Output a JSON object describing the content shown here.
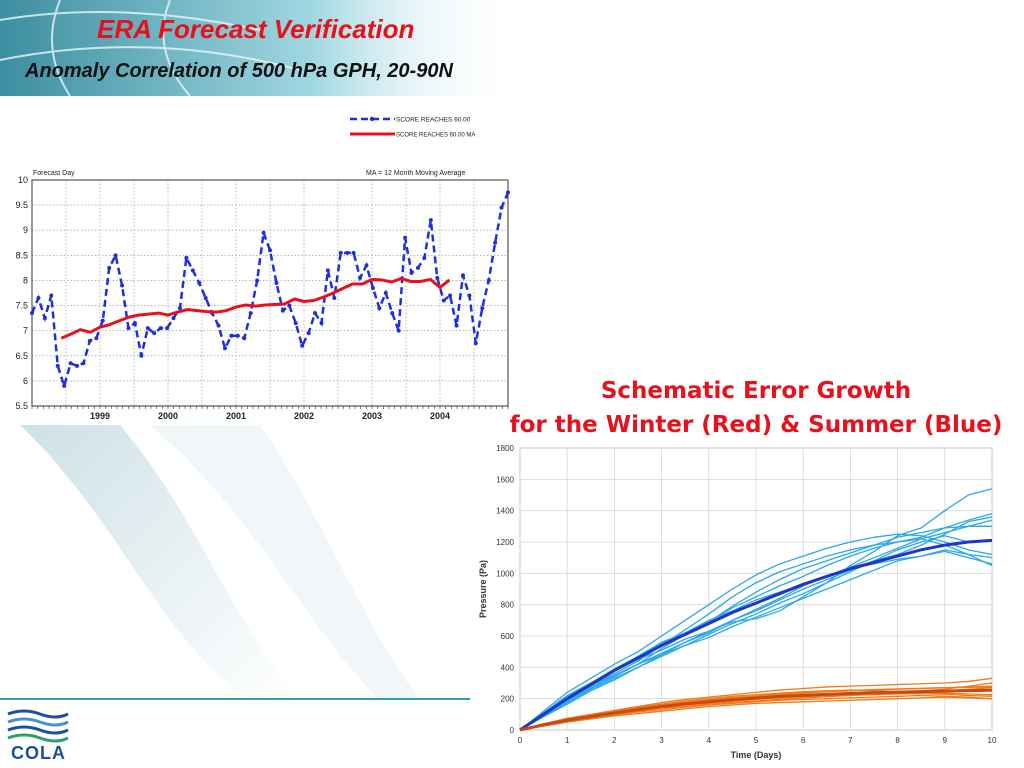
{
  "slide": {
    "title": "ERA Forecast Verification",
    "subtitle": "Anomaly Correlation of 500 hPa GPH, 20-90N",
    "accent_color": "#e8101a",
    "decoration": "globe-swoosh-graphic"
  },
  "section2": {
    "title_line1": "Schematic Error Growth",
    "title_line2": "for the Winter (Red) & Summer (Blue)"
  },
  "logo": {
    "text": "COLA",
    "color": "#1a4f9e"
  },
  "chart_data": [
    {
      "type": "line",
      "title": "",
      "ylabel": "Forecast Day",
      "annotation": "MA = 12 Month  Moving Average",
      "ylim": [
        5.5,
        10
      ],
      "yticks": [
        10,
        9.5,
        9,
        8.5,
        8,
        7.5,
        7,
        6.5,
        6,
        5.5
      ],
      "xlim": [
        1998.0,
        2005.0
      ],
      "x_tick_labels": [
        {
          "x": 1999.0,
          "label": "1999"
        },
        {
          "x": 2000.0,
          "label": "2000"
        },
        {
          "x": 2001.0,
          "label": "2001"
        },
        {
          "x": 2002.0,
          "label": "2002"
        },
        {
          "x": 2003.0,
          "label": "2003"
        },
        {
          "x": 2004.0,
          "label": "2004"
        }
      ],
      "grid": true,
      "legend_position": "top-right, above plot",
      "series": [
        {
          "name": "SCORE REACHES  60.00",
          "color": "#1f2fdc",
          "style": "dashed-markers",
          "values": [
            7.35,
            7.65,
            7.25,
            7.7,
            6.3,
            5.9,
            6.35,
            6.3,
            6.35,
            6.8,
            6.85,
            7.2,
            8.25,
            8.5,
            7.9,
            7.05,
            7.15,
            6.5,
            7.05,
            6.95,
            7.05,
            7.05,
            7.25,
            7.45,
            8.45,
            8.2,
            7.95,
            7.65,
            7.35,
            7.1,
            6.65,
            6.9,
            6.9,
            6.85,
            7.35,
            8.0,
            8.95,
            8.6,
            7.95,
            7.4,
            7.5,
            7.15,
            6.7,
            6.95,
            7.35,
            7.15,
            8.2,
            7.65,
            8.55,
            8.55,
            8.55,
            8.05,
            8.3,
            7.85,
            7.45,
            7.75,
            7.35,
            7.0,
            8.85,
            8.15,
            8.25,
            8.45,
            9.2,
            8.05,
            7.6,
            7.7,
            7.1,
            8.1,
            7.7,
            6.75,
            7.45,
            8.0,
            8.75,
            9.45,
            9.75
          ]
        },
        {
          "name": "SCORE REACHES  60.00 MA",
          "color": "#e8101a",
          "style": "solid",
          "x": [
            1998.43,
            1998.57,
            1998.71,
            1998.86,
            1999.0,
            1999.14,
            1999.29,
            1999.43,
            1999.57,
            1999.71,
            1999.86,
            2000.0,
            2000.14,
            2000.29,
            2000.43,
            2000.57,
            2000.71,
            2000.86,
            2001.0,
            2001.14,
            2001.29,
            2001.43,
            2001.57,
            2001.71,
            2001.86,
            2002.0,
            2002.14,
            2002.29,
            2002.43,
            2002.57,
            2002.71,
            2002.86,
            2003.0,
            2003.14,
            2003.29,
            2003.43,
            2003.57,
            2003.71,
            2003.86,
            2004.0,
            2004.14
          ],
          "values": [
            6.85,
            6.93,
            7.02,
            6.97,
            7.07,
            7.12,
            7.2,
            7.27,
            7.31,
            7.33,
            7.35,
            7.31,
            7.37,
            7.42,
            7.4,
            7.38,
            7.37,
            7.4,
            7.47,
            7.51,
            7.49,
            7.51,
            7.52,
            7.53,
            7.63,
            7.58,
            7.6,
            7.67,
            7.75,
            7.84,
            7.93,
            7.93,
            8.02,
            8.01,
            7.97,
            8.04,
            7.98,
            7.98,
            8.02,
            7.86,
            8.01
          ]
        }
      ]
    },
    {
      "type": "line",
      "title": "",
      "xlabel": "Time (Days)",
      "ylabel": "Pressure (Pa)",
      "xlim": [
        0,
        10
      ],
      "ylim": [
        0,
        1800
      ],
      "xticks": [
        0,
        1,
        2,
        3,
        4,
        5,
        6,
        7,
        8,
        9,
        10
      ],
      "yticks": [
        0,
        200,
        400,
        600,
        800,
        1000,
        1200,
        1400,
        1600,
        1800
      ],
      "grid": true,
      "x": [
        0,
        0.5,
        1,
        1.5,
        2,
        2.5,
        3,
        3.5,
        4,
        4.5,
        5,
        5.5,
        6,
        6.5,
        7,
        7.5,
        8,
        8.5,
        9,
        9.5,
        10
      ],
      "series": [
        {
          "group": "summer",
          "color": "#2aa8e8",
          "values": [
            0,
            95,
            180,
            270,
            340,
            420,
            520,
            610,
            690,
            790,
            880,
            960,
            1030,
            1080,
            1130,
            1180,
            1230,
            1260,
            1290,
            1300,
            1300
          ]
        },
        {
          "group": "summer",
          "color": "#2aa8e8",
          "values": [
            0,
            105,
            200,
            290,
            380,
            470,
            560,
            620,
            690,
            780,
            850,
            920,
            980,
            1050,
            1110,
            1160,
            1200,
            1230,
            1290,
            1340,
            1380
          ]
        },
        {
          "group": "summer",
          "color": "#2aa8e8",
          "values": [
            0,
            90,
            170,
            260,
            330,
            400,
            470,
            540,
            610,
            680,
            740,
            810,
            870,
            940,
            1010,
            1080,
            1150,
            1200,
            1240,
            1200,
            1210
          ]
        },
        {
          "group": "summer",
          "color": "#2aa8e8",
          "values": [
            0,
            110,
            220,
            300,
            380,
            450,
            510,
            580,
            630,
            690,
            710,
            760,
            850,
            940,
            1050,
            1140,
            1240,
            1290,
            1400,
            1500,
            1540
          ]
        },
        {
          "group": "summer",
          "color": "#2aa8e8",
          "values": [
            0,
            100,
            190,
            280,
            360,
            440,
            540,
            640,
            740,
            850,
            940,
            1010,
            1060,
            1110,
            1150,
            1180,
            1200,
            1220,
            1180,
            1120,
            1050
          ]
        },
        {
          "group": "summer",
          "color": "#2aa8e8",
          "values": [
            0,
            85,
            165,
            250,
            320,
            400,
            480,
            540,
            590,
            660,
            720,
            780,
            840,
            900,
            960,
            1020,
            1080,
            1110,
            1150,
            1120,
            1100
          ]
        },
        {
          "group": "summer",
          "color": "#2aa8e8",
          "values": [
            0,
            120,
            240,
            330,
            420,
            500,
            600,
            700,
            800,
            900,
            990,
            1060,
            1110,
            1160,
            1200,
            1230,
            1250,
            1240,
            1200,
            1150,
            1120
          ]
        },
        {
          "group": "summer",
          "color": "#2aa8e8",
          "values": [
            0,
            100,
            200,
            280,
            350,
            420,
            480,
            560,
            620,
            700,
            760,
            830,
            900,
            960,
            1020,
            1080,
            1120,
            1180,
            1250,
            1330,
            1360
          ]
        },
        {
          "group": "summer",
          "color": "#2aa8e8",
          "values": [
            0,
            110,
            210,
            300,
            390,
            470,
            550,
            620,
            700,
            760,
            830,
            880,
            930,
            980,
            1030,
            1060,
            1090,
            1110,
            1140,
            1100,
            1060
          ]
        },
        {
          "group": "summer",
          "color": "#2aa8e8",
          "values": [
            0,
            95,
            185,
            265,
            345,
            420,
            490,
            560,
            630,
            700,
            770,
            840,
            920,
            980,
            1040,
            1100,
            1160,
            1220,
            1260,
            1300,
            1340
          ]
        },
        {
          "group": "summer-mean",
          "color": "#1f35c8",
          "values": [
            0,
            100,
            200,
            290,
            380,
            460,
            540,
            610,
            680,
            750,
            810,
            870,
            930,
            980,
            1030,
            1070,
            1110,
            1150,
            1180,
            1200,
            1210
          ]
        },
        {
          "group": "winter",
          "color": "#f07a18",
          "values": [
            0,
            35,
            65,
            90,
            115,
            140,
            160,
            175,
            190,
            205,
            215,
            225,
            235,
            245,
            250,
            255,
            260,
            265,
            270,
            275,
            280
          ]
        },
        {
          "group": "winter",
          "color": "#f07a18",
          "values": [
            0,
            30,
            55,
            80,
            100,
            120,
            140,
            150,
            165,
            175,
            185,
            195,
            205,
            212,
            220,
            228,
            235,
            240,
            245,
            250,
            255
          ]
        },
        {
          "group": "winter",
          "color": "#f07a18",
          "values": [
            0,
            40,
            75,
            100,
            125,
            150,
            175,
            195,
            210,
            225,
            240,
            255,
            265,
            275,
            280,
            285,
            290,
            295,
            300,
            310,
            330
          ]
        },
        {
          "group": "winter",
          "color": "#f07a18",
          "values": [
            0,
            25,
            50,
            70,
            90,
            105,
            120,
            135,
            150,
            160,
            170,
            175,
            180,
            185,
            190,
            195,
            200,
            205,
            210,
            205,
            200
          ]
        },
        {
          "group": "winter",
          "color": "#f07a18",
          "values": [
            0,
            38,
            70,
            95,
            120,
            145,
            165,
            185,
            200,
            215,
            225,
            235,
            245,
            250,
            255,
            250,
            245,
            240,
            235,
            230,
            225
          ]
        },
        {
          "group": "winter",
          "color": "#f07a18",
          "values": [
            0,
            32,
            60,
            85,
            110,
            130,
            150,
            165,
            180,
            195,
            205,
            215,
            220,
            225,
            230,
            235,
            240,
            250,
            260,
            280,
            300
          ]
        },
        {
          "group": "winter",
          "color": "#f07a18",
          "values": [
            0,
            28,
            52,
            75,
            95,
            115,
            130,
            145,
            160,
            170,
            180,
            190,
            195,
            200,
            205,
            210,
            215,
            220,
            215,
            210,
            200
          ]
        },
        {
          "group": "winter",
          "color": "#f07a18",
          "values": [
            0,
            36,
            68,
            92,
            118,
            140,
            160,
            178,
            192,
            206,
            218,
            228,
            238,
            246,
            252,
            258,
            262,
            266,
            270,
            272,
            274
          ]
        },
        {
          "group": "winter",
          "color": "#f07a18",
          "values": [
            0,
            30,
            58,
            82,
            105,
            125,
            145,
            160,
            172,
            184,
            195,
            205,
            212,
            218,
            222,
            226,
            230,
            232,
            228,
            220,
            215
          ]
        },
        {
          "group": "winter",
          "color": "#f07a18",
          "values": [
            0,
            34,
            64,
            88,
            112,
            132,
            152,
            168,
            182,
            195,
            206,
            214,
            220,
            226,
            232,
            236,
            240,
            244,
            250,
            260,
            270
          ]
        },
        {
          "group": "winter-mean",
          "color": "#c84a10",
          "values": [
            0,
            33,
            62,
            86,
            109,
            130,
            150,
            166,
            180,
            193,
            204,
            214,
            221,
            228,
            233,
            238,
            242,
            245,
            248,
            251,
            254
          ]
        }
      ]
    }
  ]
}
